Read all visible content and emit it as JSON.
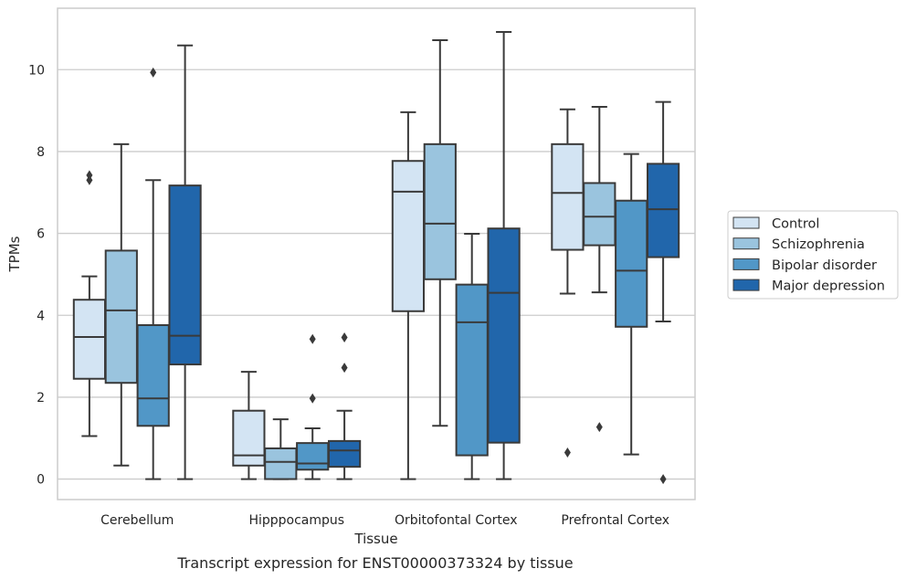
{
  "chart_data": {
    "type": "box",
    "xlabel": "Tissue",
    "ylabel": "TPMs",
    "caption": "Transcript expression for ENST00000373324 by tissue",
    "ylim": [
      -0.5,
      11.5
    ],
    "yticks": [
      0,
      2,
      4,
      6,
      8,
      10
    ],
    "grid": "horizontal",
    "legend_placement": "right",
    "categories": [
      "Cerebellum",
      "Hipppocampus",
      "Orbitofontal Cortex",
      "Prefrontal Cortex"
    ],
    "series": [
      {
        "name": "Control",
        "color": "#d3e4f3",
        "boxes": [
          {
            "whislo": 1.05,
            "q1": 2.45,
            "med": 3.47,
            "q3": 4.38,
            "whishi": 4.95,
            "fliers": [
              7.3,
              7.42
            ]
          },
          {
            "whislo": 0.0,
            "q1": 0.33,
            "med": 0.58,
            "q3": 1.67,
            "whishi": 2.62,
            "fliers": []
          },
          {
            "whislo": 0.0,
            "q1": 4.1,
            "med": 7.02,
            "q3": 7.77,
            "whishi": 8.96,
            "fliers": []
          },
          {
            "whislo": 4.53,
            "q1": 5.6,
            "med": 6.99,
            "q3": 8.18,
            "whishi": 9.03,
            "fliers": [
              0.65
            ]
          }
        ]
      },
      {
        "name": "Schizophrenia",
        "color": "#9ac4de",
        "boxes": [
          {
            "whislo": 0.33,
            "q1": 2.35,
            "med": 4.12,
            "q3": 5.58,
            "whishi": 8.18,
            "fliers": []
          },
          {
            "whislo": 0.0,
            "q1": 0.0,
            "med": 0.42,
            "q3": 0.75,
            "whishi": 1.46,
            "fliers": []
          },
          {
            "whislo": 1.3,
            "q1": 4.88,
            "med": 6.24,
            "q3": 8.18,
            "whishi": 10.72,
            "fliers": []
          },
          {
            "whislo": 4.56,
            "q1": 5.71,
            "med": 6.41,
            "q3": 7.23,
            "whishi": 9.09,
            "fliers": [
              1.27
            ]
          }
        ]
      },
      {
        "name": "Bipolar disorder",
        "color": "#5197c7",
        "boxes": [
          {
            "whislo": 0.0,
            "q1": 1.3,
            "med": 1.97,
            "q3": 3.76,
            "whishi": 7.3,
            "fliers": [
              9.93
            ]
          },
          {
            "whislo": 0.0,
            "q1": 0.23,
            "med": 0.38,
            "q3": 0.88,
            "whishi": 1.24,
            "fliers": [
              1.97,
              3.42
            ]
          },
          {
            "whislo": 0.0,
            "q1": 0.58,
            "med": 3.83,
            "q3": 4.75,
            "whishi": 5.99,
            "fliers": []
          },
          {
            "whislo": 0.6,
            "q1": 3.72,
            "med": 5.09,
            "q3": 6.8,
            "whishi": 7.94,
            "fliers": []
          }
        ]
      },
      {
        "name": "Major depression",
        "color": "#2166ab",
        "boxes": [
          {
            "whislo": 0.0,
            "q1": 2.8,
            "med": 3.5,
            "q3": 7.17,
            "whishi": 10.59,
            "fliers": []
          },
          {
            "whislo": 0.0,
            "q1": 0.3,
            "med": 0.7,
            "q3": 0.93,
            "whishi": 1.67,
            "fliers": [
              2.72,
              3.46
            ]
          },
          {
            "whislo": 0.0,
            "q1": 0.89,
            "med": 4.55,
            "q3": 6.12,
            "whishi": 10.92,
            "fliers": []
          },
          {
            "whislo": 3.85,
            "q1": 5.42,
            "med": 6.59,
            "q3": 7.7,
            "whishi": 9.21,
            "fliers": [
              0.0
            ]
          }
        ]
      }
    ]
  }
}
